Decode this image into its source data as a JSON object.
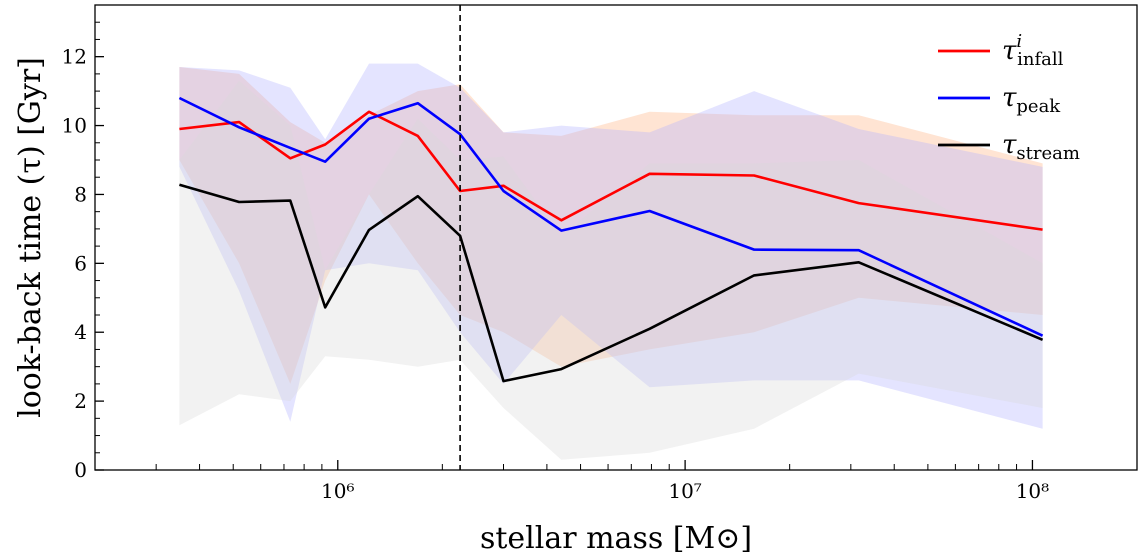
{
  "chart_data": {
    "type": "line",
    "title": "",
    "xlabel": "stellar mass [M⊙]",
    "ylabel": "look-back time (τ) [Gyr]",
    "xscale": "log",
    "xlim": [
      200000,
      200000000
    ],
    "ylim": [
      0,
      13.5
    ],
    "x_major_ticks": [
      1000000,
      10000000,
      100000000
    ],
    "x_tick_labels": [
      "10⁶",
      "10⁷",
      "10⁸"
    ],
    "y_ticks": [
      0,
      2,
      4,
      6,
      8,
      10,
      12
    ],
    "y_tick_labels": [
      "0",
      "2",
      "4",
      "6",
      "8",
      "10",
      "12"
    ],
    "grid": false,
    "legend_placement": "top-right",
    "vline": {
      "x": 2250000,
      "style": "dashed",
      "color": "#000000"
    },
    "x": [
      350000,
      520000,
      730000,
      920000,
      1230000,
      1700000,
      2250000,
      3000000,
      4400000,
      7900000,
      15800000,
      31600000,
      107000000
    ],
    "series": [
      {
        "name": "infall",
        "symbol": "τ",
        "sup": "i",
        "sub": "infall",
        "color": "#ff0000",
        "values": [
          9.9,
          10.1,
          9.05,
          9.45,
          10.4,
          9.7,
          8.1,
          8.25,
          7.25,
          8.6,
          8.55,
          7.75,
          6.98
        ],
        "band_lower": [
          9.0,
          6.0,
          2.5,
          5.5,
          8.0,
          6.0,
          4.5,
          4.0,
          3.0,
          3.5,
          4.0,
          5.0,
          4.5
        ],
        "band_upper": [
          11.7,
          11.5,
          10.1,
          9.5,
          10.3,
          11.0,
          11.2,
          9.8,
          9.7,
          10.4,
          10.3,
          10.3,
          8.9
        ],
        "band_color": "#ffb380"
      },
      {
        "name": "peak",
        "symbol": "τ",
        "sup": "",
        "sub": "peak",
        "color": "#0000ff",
        "values": [
          10.8,
          9.95,
          9.35,
          8.95,
          10.2,
          10.65,
          9.75,
          8.1,
          6.95,
          7.52,
          6.4,
          6.38,
          3.9
        ],
        "band_lower": [
          8.8,
          5.2,
          1.4,
          5.8,
          6.0,
          5.8,
          4.0,
          2.5,
          4.5,
          2.4,
          2.6,
          2.6,
          1.2
        ],
        "band_upper": [
          11.7,
          11.6,
          11.1,
          9.6,
          11.8,
          11.8,
          11.1,
          9.8,
          10.0,
          9.8,
          11.0,
          9.9,
          8.8
        ],
        "band_color": "#b3b3ff"
      },
      {
        "name": "stream",
        "symbol": "τ",
        "sup": "",
        "sub": "stream",
        "color": "#000000",
        "values": [
          8.28,
          7.78,
          7.82,
          4.72,
          6.97,
          7.95,
          6.8,
          2.58,
          2.93,
          4.1,
          5.65,
          6.03,
          3.78
        ],
        "band_lower": [
          1.3,
          2.2,
          2.0,
          3.3,
          3.2,
          3.0,
          3.2,
          1.8,
          0.3,
          0.5,
          1.2,
          2.8,
          1.8
        ],
        "band_upper": [
          9.0,
          11.3,
          10.0,
          5.8,
          8.0,
          10.2,
          9.0,
          9.1,
          6.8,
          8.9,
          8.9,
          9.0,
          6.0
        ],
        "band_color": "#d9d9d9"
      }
    ]
  }
}
